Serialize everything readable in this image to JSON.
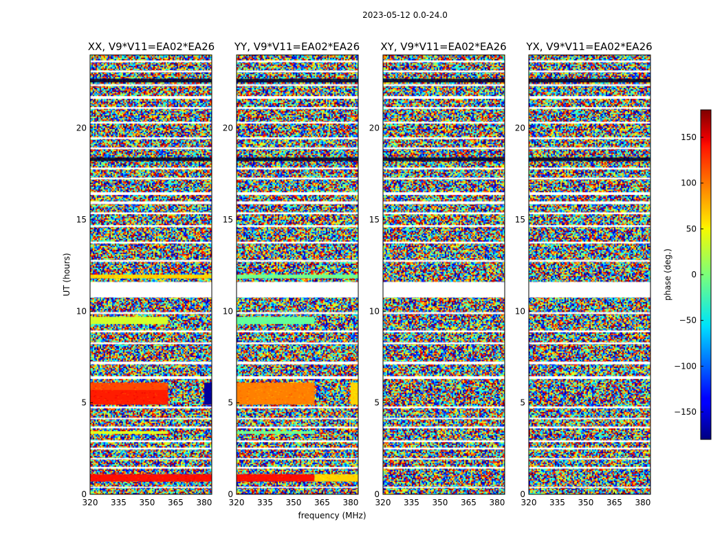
{
  "figure": {
    "suptitle": "2023-05-12 0.0-24.0",
    "xlabel": "frequency (MHz)",
    "ylabel": "UT (hours)",
    "colorbar_label": "phase (deg.)",
    "colorbar_ticks": [
      "150",
      "100",
      "50",
      "0",
      "−50",
      "−100",
      "−150"
    ],
    "colorbar_tick_values": [
      150,
      100,
      50,
      0,
      -50,
      -100,
      -150
    ],
    "colorbar_range": [
      -180,
      180
    ],
    "colormap": "jet"
  },
  "chart_data": [
    {
      "type": "heatmap",
      "title": "XX, V9*V11=EA02*EA26",
      "xlim": [
        320,
        384
      ],
      "ylim": [
        0,
        24
      ],
      "x_ticks": [
        320,
        335,
        350,
        365,
        380
      ],
      "x_tick_labels": [
        "320",
        "335",
        "350",
        "365",
        "380"
      ],
      "y_ticks": [
        0,
        5,
        10,
        15,
        20
      ],
      "y_tick_labels": [
        "0",
        "5",
        "10",
        "15",
        "20"
      ],
      "coherent_bands": [
        {
          "t0": 0.7,
          "t1": 1.1,
          "f0": 320,
          "f1": 384,
          "phase": 130
        },
        {
          "t0": 4.9,
          "t1": 5.7,
          "f0": 320,
          "f1": 361,
          "phase": 125
        },
        {
          "t0": 5.7,
          "t1": 6.1,
          "f0": 320,
          "f1": 361,
          "phase": 110
        },
        {
          "t0": 4.9,
          "t1": 6.1,
          "f0": 380,
          "f1": 384,
          "phase": -170
        },
        {
          "t0": 9.3,
          "t1": 9.7,
          "f0": 320,
          "f1": 361,
          "phase": 30
        },
        {
          "t0": 11.8,
          "t1": 12.0,
          "f0": 320,
          "f1": 384,
          "phase": 60
        },
        {
          "t0": 3.3,
          "t1": 3.45,
          "f0": 320,
          "f1": 361,
          "phase": 35
        }
      ]
    },
    {
      "type": "heatmap",
      "title": "YY, V9*V11=EA02*EA26",
      "xlim": [
        320,
        384
      ],
      "ylim": [
        0,
        24
      ],
      "x_ticks": [
        320,
        335,
        350,
        365,
        380
      ],
      "x_tick_labels": [
        "320",
        "335",
        "350",
        "365",
        "380"
      ],
      "y_ticks": [
        0,
        5,
        10,
        15,
        20
      ],
      "y_tick_labels": [
        "0",
        "5",
        "10",
        "15",
        "20"
      ],
      "coherent_bands": [
        {
          "t0": 0.7,
          "t1": 1.1,
          "f0": 320,
          "f1": 361,
          "phase": 130
        },
        {
          "t0": 0.7,
          "t1": 1.1,
          "f0": 361,
          "f1": 384,
          "phase": 60
        },
        {
          "t0": 4.9,
          "t1": 6.1,
          "f0": 320,
          "f1": 361,
          "phase": 90
        },
        {
          "t0": 4.9,
          "t1": 6.1,
          "f0": 380,
          "f1": 384,
          "phase": 60
        },
        {
          "t0": 9.3,
          "t1": 9.7,
          "f0": 320,
          "f1": 361,
          "phase": -10
        },
        {
          "t0": 11.8,
          "t1": 12.0,
          "f0": 320,
          "f1": 384,
          "phase": -5
        },
        {
          "t0": 3.3,
          "t1": 3.45,
          "f0": 320,
          "f1": 361,
          "phase": -5
        }
      ]
    },
    {
      "type": "heatmap",
      "title": "XY, V9*V11=EA02*EA26",
      "xlim": [
        320,
        384
      ],
      "ylim": [
        0,
        24
      ],
      "x_ticks": [
        320,
        335,
        350,
        365,
        380
      ],
      "x_tick_labels": [
        "320",
        "335",
        "350",
        "365",
        "380"
      ],
      "y_ticks": [
        0,
        5,
        10,
        15,
        20
      ],
      "y_tick_labels": [
        "0",
        "5",
        "10",
        "15",
        "20"
      ],
      "coherent_bands": []
    },
    {
      "type": "heatmap",
      "title": "YX, V9*V11=EA02*EA26",
      "xlim": [
        320,
        384
      ],
      "ylim": [
        0,
        24
      ],
      "x_ticks": [
        320,
        335,
        350,
        365,
        380
      ],
      "x_tick_labels": [
        "320",
        "335",
        "350",
        "365",
        "380"
      ],
      "y_ticks": [
        0,
        5,
        10,
        15,
        20
      ],
      "y_tick_labels": [
        "0",
        "5",
        "10",
        "15",
        "20"
      ],
      "coherent_bands": []
    }
  ],
  "flagged_gaps_hours": [
    [
      0.35,
      0.42
    ],
    [
      1.4,
      1.5
    ],
    [
      1.9,
      1.98
    ],
    [
      2.45,
      2.55
    ],
    [
      2.85,
      2.95
    ],
    [
      3.6,
      3.7
    ],
    [
      4.1,
      4.18
    ],
    [
      4.7,
      4.8
    ],
    [
      6.3,
      6.45
    ],
    [
      7.1,
      7.25
    ],
    [
      8.2,
      8.3
    ],
    [
      8.85,
      8.95
    ],
    [
      9.85,
      9.95
    ],
    [
      10.75,
      11.6
    ],
    [
      12.7,
      12.8
    ],
    [
      13.7,
      13.8
    ],
    [
      14.6,
      14.7
    ],
    [
      15.3,
      15.4
    ],
    [
      15.85,
      16.0
    ],
    [
      16.35,
      16.5
    ],
    [
      17.2,
      17.3
    ],
    [
      17.75,
      17.85
    ],
    [
      18.85,
      18.95
    ],
    [
      19.4,
      19.5
    ],
    [
      20.25,
      20.35
    ],
    [
      21.05,
      21.15
    ],
    [
      21.6,
      21.75
    ],
    [
      22.3,
      22.4
    ],
    [
      23.05,
      23.15
    ],
    [
      23.6,
      23.7
    ]
  ],
  "dark_bands_hours": [
    [
      18.2,
      18.4
    ],
    [
      22.5,
      22.7
    ]
  ]
}
